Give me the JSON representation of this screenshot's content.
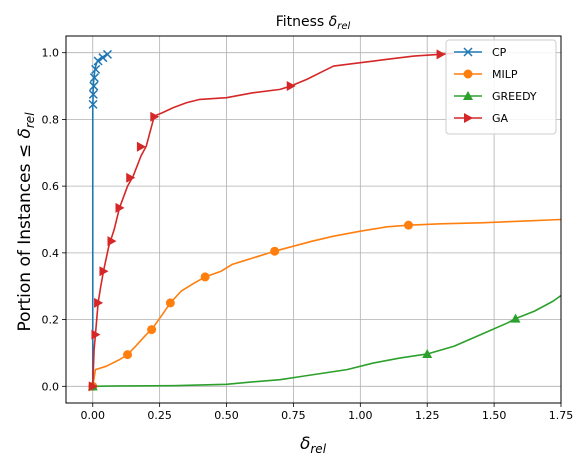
{
  "chart_data": {
    "type": "line",
    "title": "Fitness",
    "title_symbol": "δ",
    "title_subscript": "rel",
    "xlabel_symbol": "δ",
    "xlabel_subscript": "rel",
    "ylabel": "Portion of Instances  ≤",
    "ylabel_symbol": "δ",
    "ylabel_subscript": "rel",
    "xlim": [
      -0.1,
      1.75
    ],
    "ylim": [
      -0.05,
      1.05
    ],
    "xticks": [
      "0.00",
      "0.25",
      "0.50",
      "0.75",
      "1.00",
      "1.25",
      "1.50",
      "1.75"
    ],
    "yticks": [
      "0.0",
      "0.2",
      "0.4",
      "0.6",
      "0.8",
      "1.0"
    ],
    "grid": true,
    "legend_position": "top-right",
    "series": [
      {
        "name": "CP",
        "color": "#1f77b4",
        "marker": "x",
        "x": [
          0.0,
          0.0,
          0.0,
          0.0,
          0.0,
          0.001,
          0.001,
          0.002,
          0.003,
          0.004,
          0.006,
          0.008,
          0.011,
          0.015,
          0.02,
          0.028,
          0.038,
          0.05,
          0.058
        ],
        "y": [
          0.0,
          0.1,
          0.3,
          0.6,
          0.84,
          0.86,
          0.88,
          0.895,
          0.91,
          0.92,
          0.935,
          0.95,
          0.96,
          0.97,
          0.978,
          0.983,
          0.988,
          0.993,
          0.995
        ],
        "marker_x": [
          0.001,
          0.002,
          0.004,
          0.006,
          0.011,
          0.02,
          0.038,
          0.055
        ],
        "marker_y": [
          0.845,
          0.875,
          0.9,
          0.925,
          0.95,
          0.975,
          0.985,
          0.995
        ]
      },
      {
        "name": "MILP",
        "color": "#ff7f0e",
        "marker": "o",
        "x": [
          0.0,
          0.01,
          0.05,
          0.1,
          0.13,
          0.16,
          0.2,
          0.22,
          0.26,
          0.29,
          0.33,
          0.38,
          0.42,
          0.48,
          0.52,
          0.56,
          0.62,
          0.68,
          0.75,
          0.82,
          0.9,
          1.0,
          1.1,
          1.18,
          1.3,
          1.45,
          1.6,
          1.75
        ],
        "y": [
          0.0,
          0.05,
          0.06,
          0.08,
          0.095,
          0.12,
          0.155,
          0.17,
          0.215,
          0.25,
          0.285,
          0.31,
          0.328,
          0.345,
          0.365,
          0.375,
          0.39,
          0.405,
          0.42,
          0.435,
          0.45,
          0.465,
          0.478,
          0.483,
          0.487,
          0.49,
          0.495,
          0.5
        ],
        "marker_x": [
          0.0,
          0.13,
          0.22,
          0.29,
          0.42,
          0.68,
          1.18
        ],
        "marker_y": [
          0.0,
          0.095,
          0.17,
          0.25,
          0.328,
          0.405,
          0.483
        ]
      },
      {
        "name": "GREEDY",
        "color": "#2ca02c",
        "marker": "^",
        "x": [
          0.0,
          0.1,
          0.3,
          0.5,
          0.58,
          0.7,
          0.8,
          0.95,
          1.05,
          1.15,
          1.25,
          1.35,
          1.45,
          1.55,
          1.58,
          1.65,
          1.72,
          1.75
        ],
        "y": [
          0.0,
          0.001,
          0.002,
          0.006,
          0.012,
          0.02,
          0.032,
          0.05,
          0.07,
          0.085,
          0.097,
          0.12,
          0.155,
          0.19,
          0.203,
          0.225,
          0.255,
          0.272
        ],
        "marker_x": [
          0.0,
          1.25,
          1.58
        ],
        "marker_y": [
          0.0,
          0.097,
          0.203
        ]
      },
      {
        "name": "GA",
        "color": "#d62728",
        "marker": ">",
        "x": [
          0.0,
          0.005,
          0.01,
          0.02,
          0.03,
          0.04,
          0.06,
          0.08,
          0.1,
          0.13,
          0.15,
          0.18,
          0.2,
          0.23,
          0.26,
          0.3,
          0.35,
          0.4,
          0.5,
          0.6,
          0.7,
          0.74,
          0.8,
          0.85,
          0.9,
          1.0,
          1.05,
          1.1,
          1.2,
          1.3,
          1.35
        ],
        "y": [
          0.0,
          0.11,
          0.155,
          0.25,
          0.3,
          0.345,
          0.42,
          0.47,
          0.535,
          0.6,
          0.628,
          0.69,
          0.72,
          0.81,
          0.82,
          0.835,
          0.85,
          0.86,
          0.865,
          0.88,
          0.89,
          0.9,
          0.92,
          0.94,
          0.96,
          0.97,
          0.975,
          0.98,
          0.99,
          0.995,
          0.998
        ],
        "marker_x": [
          0.0,
          0.01,
          0.02,
          0.04,
          0.07,
          0.1,
          0.14,
          0.18,
          0.23,
          0.74,
          1.3
        ],
        "marker_y": [
          0.0,
          0.155,
          0.25,
          0.345,
          0.435,
          0.535,
          0.625,
          0.718,
          0.808,
          0.9,
          0.995
        ]
      }
    ]
  }
}
